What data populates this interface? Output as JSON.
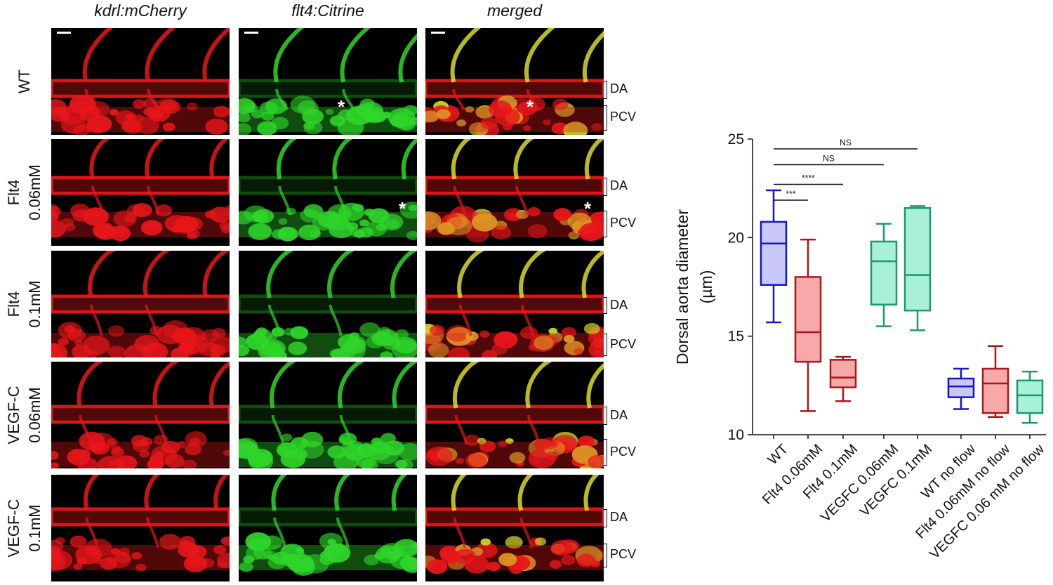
{
  "columns": [
    "kdrl:mCherry",
    "flt4:Citrine",
    "merged"
  ],
  "rows": [
    {
      "label_lines": [
        "WT"
      ],
      "da": "DA",
      "pcv": "PCV"
    },
    {
      "label_lines": [
        "Flt4",
        "0.06mM"
      ],
      "da": "DA",
      "pcv": "PCV"
    },
    {
      "label_lines": [
        "Flt4",
        "0.1mM"
      ],
      "da": "DA",
      "pcv": "PCV"
    },
    {
      "label_lines": [
        "VEGF-C",
        "0.06mM"
      ],
      "da": "DA",
      "pcv": "PCV"
    },
    {
      "label_lines": [
        "VEGF-C",
        "0.1mM"
      ],
      "da": "DA",
      "pcv": "PCV"
    }
  ],
  "asterisk": "*",
  "colors": {
    "red": "#e8161b",
    "green": "#2fd62a",
    "yellow": "#d9d92a",
    "blue": "#1515c8",
    "darkred": "#a81818",
    "teal": "#1a9a6a"
  },
  "chart_data": {
    "type": "box",
    "ylabel_lines": [
      "Dorsal aorta diameter",
      "(µm)"
    ],
    "ylim": [
      10,
      25
    ],
    "yticks": [
      10,
      15,
      20,
      25
    ],
    "categories": [
      "WT",
      "Flt4 0.06mM",
      "Flt4 0.1mM",
      "VEGFC 0.06mM",
      "VEGFC 0.1mM",
      "WT no flow",
      "Flt4 0.06mM no flow",
      "VEGFC 0.06 mM no flow"
    ],
    "boxes": [
      {
        "min": 15.7,
        "q1": 17.6,
        "median": 19.7,
        "q3": 20.8,
        "max": 22.4,
        "color": "#1515c8",
        "fill": "#c8c8f6"
      },
      {
        "min": 11.2,
        "q1": 13.7,
        "median": 15.2,
        "q3": 18.0,
        "max": 19.9,
        "color": "#a81818",
        "fill": "#f8a8a8"
      },
      {
        "min": 11.7,
        "q1": 12.4,
        "median": 12.9,
        "q3": 13.8,
        "max": 13.95,
        "color": "#a81818",
        "fill": "#f8a8a8"
      },
      {
        "min": 15.5,
        "q1": 16.6,
        "median": 18.8,
        "q3": 19.8,
        "max": 20.7,
        "color": "#1a9a6a",
        "fill": "#a8f0d8"
      },
      {
        "min": 15.3,
        "q1": 16.3,
        "median": 18.1,
        "q3": 21.5,
        "max": 21.6,
        "color": "#1a9a6a",
        "fill": "#a8f0d8"
      },
      {
        "min": 11.3,
        "q1": 11.9,
        "median": 12.45,
        "q3": 12.85,
        "max": 13.35,
        "color": "#1515c8",
        "fill": "#c8c8f6"
      },
      {
        "min": 10.9,
        "q1": 11.1,
        "median": 12.6,
        "q3": 13.35,
        "max": 14.5,
        "color": "#a81818",
        "fill": "#f8a8a8"
      },
      {
        "min": 10.6,
        "q1": 11.1,
        "median": 12.0,
        "q3": 12.75,
        "max": 13.2,
        "color": "#1a9a6a",
        "fill": "#a8f0d8"
      }
    ],
    "significance": [
      {
        "from": 0,
        "to": 4,
        "y": 24.5,
        "label": "NS"
      },
      {
        "from": 0,
        "to": 3,
        "y": 23.7,
        "label": "NS"
      },
      {
        "from": 0,
        "to": 2,
        "y": 22.7,
        "label": "****"
      },
      {
        "from": 0,
        "to": 1,
        "y": 21.9,
        "label": "***"
      }
    ]
  }
}
